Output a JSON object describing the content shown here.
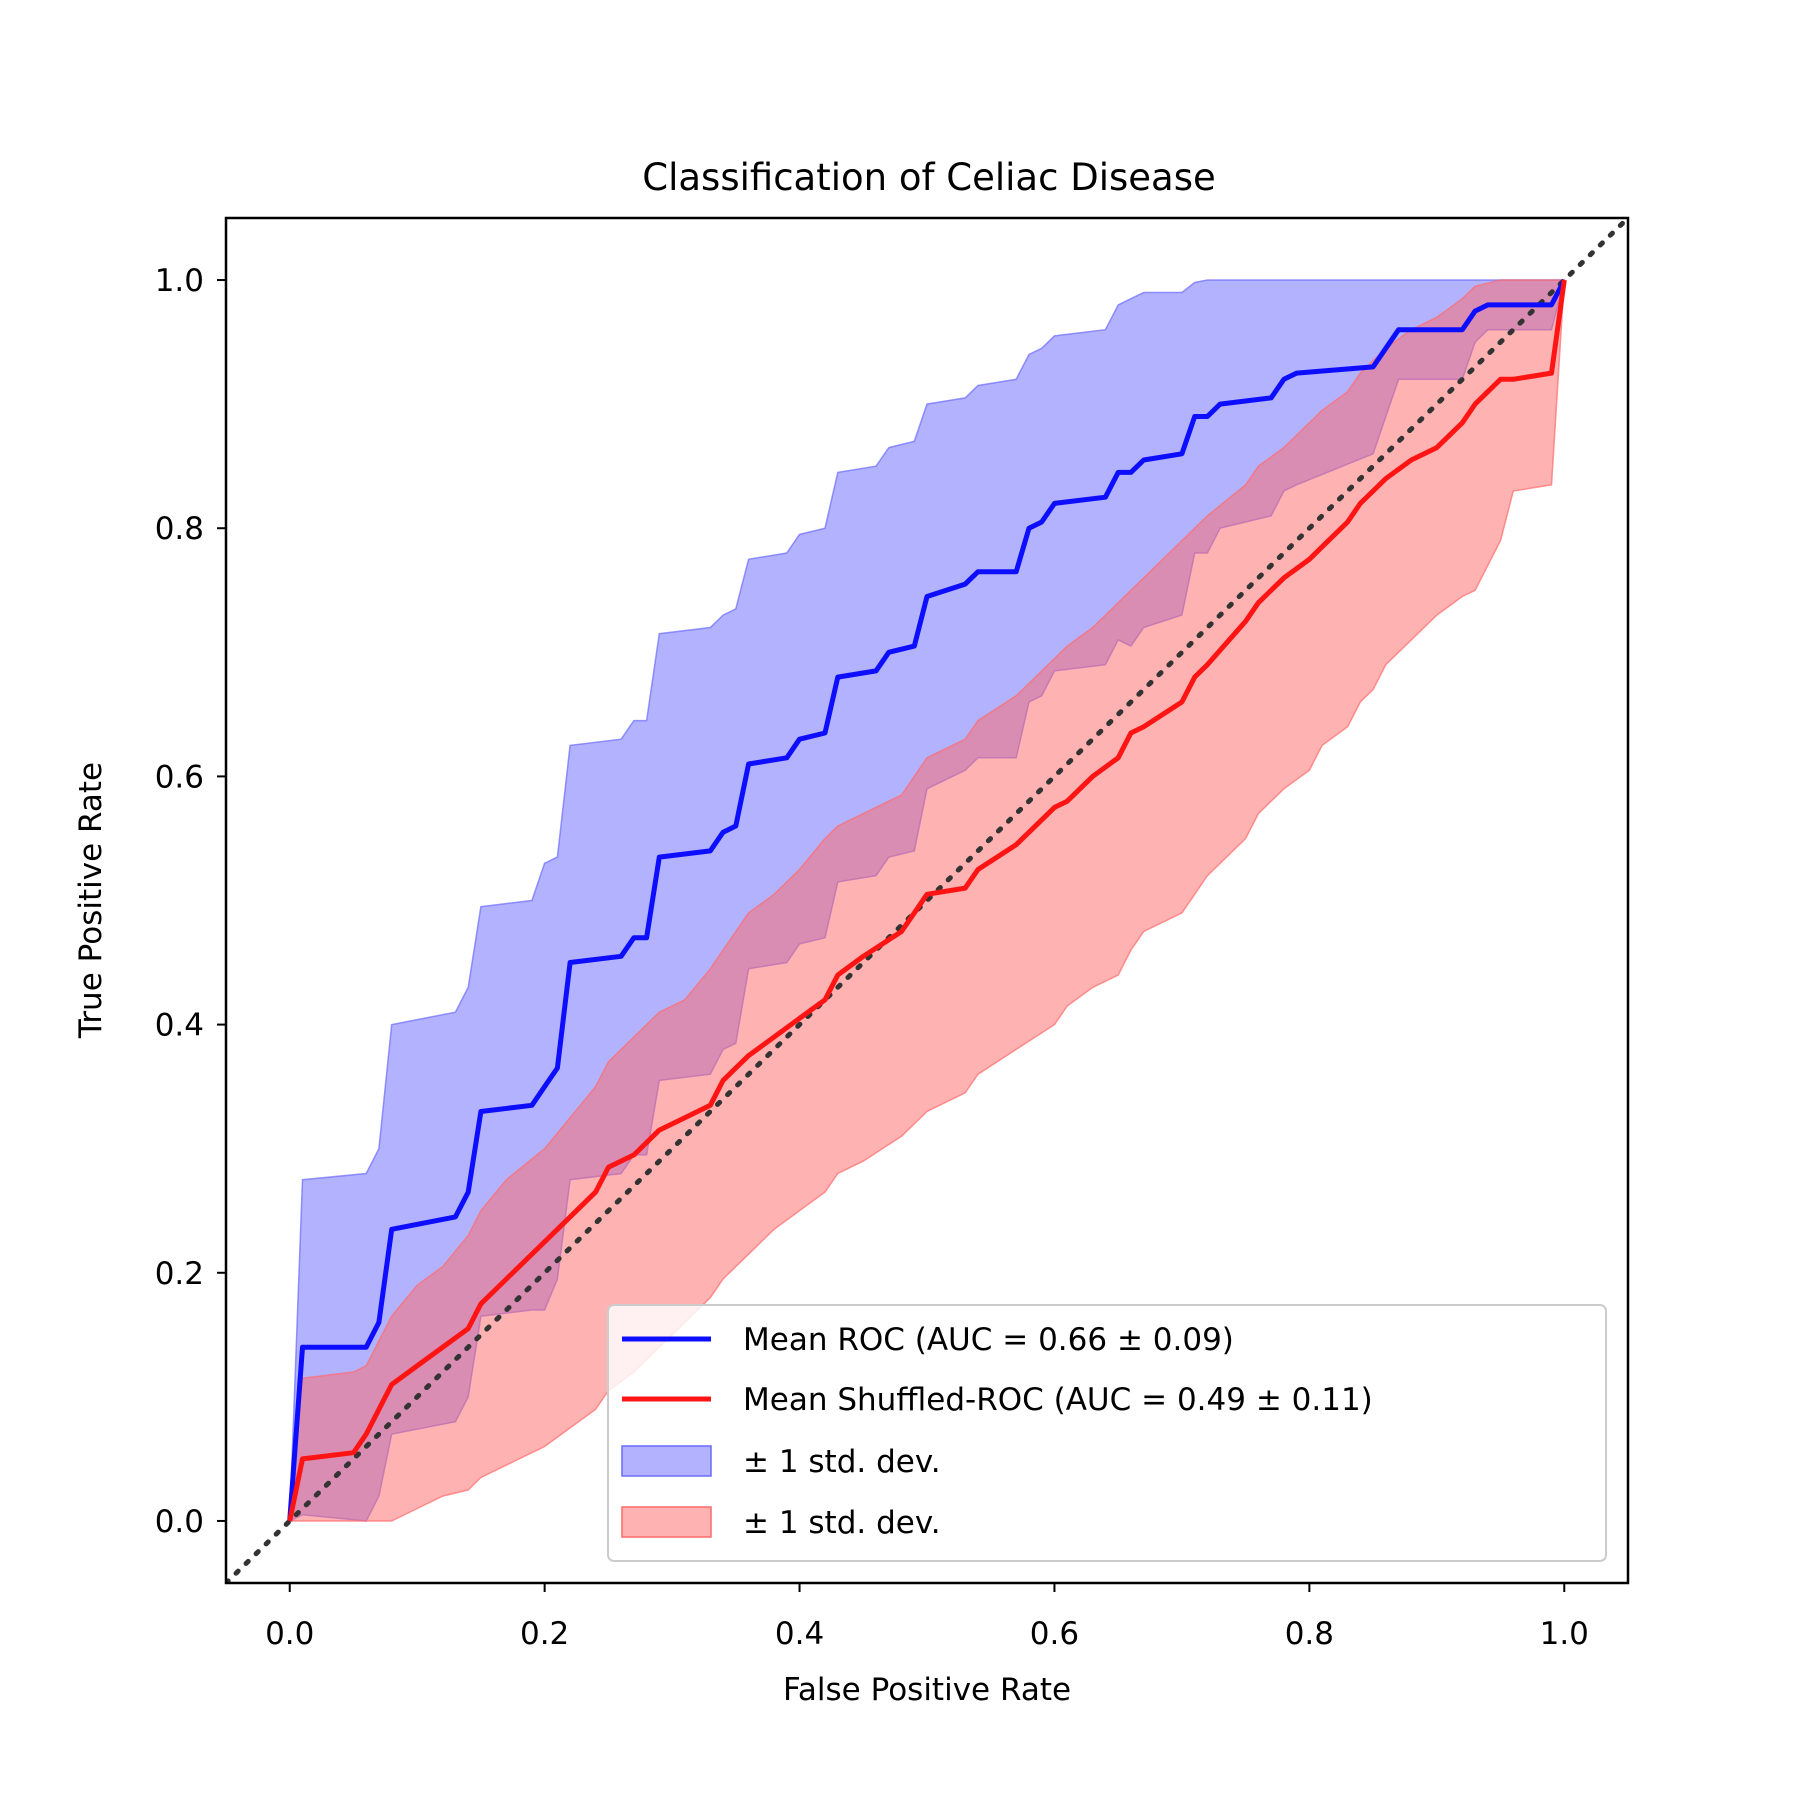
{
  "chart_data": {
    "type": "line",
    "title": "Classification of Celiac Disease",
    "xlabel": "False Positive Rate",
    "ylabel": "True Positive Rate",
    "xlim": [
      -0.05,
      1.05
    ],
    "ylim": [
      -0.05,
      1.05
    ],
    "xticks": [
      0.0,
      0.2,
      0.4,
      0.6,
      0.8,
      1.0
    ],
    "yticks": [
      0.0,
      0.2,
      0.4,
      0.6,
      0.8,
      1.0
    ],
    "xtick_labels": [
      "0.0",
      "0.2",
      "0.4",
      "0.6",
      "0.8",
      "1.0"
    ],
    "ytick_labels": [
      "0.0",
      "0.2",
      "0.4",
      "0.6",
      "0.8",
      "1.0"
    ],
    "legend_position": "lower-right",
    "diagonal": {
      "name": "chance",
      "color": "#333333",
      "style": "dotted",
      "from": [
        -0.05,
        -0.05
      ],
      "to": [
        1.05,
        1.05
      ]
    },
    "series": [
      {
        "name": "Mean ROC (AUC = 0.66 ± 0.09)",
        "color": "#0d0dff",
        "x": [
          0.0,
          0.01,
          0.06,
          0.07,
          0.08,
          0.13,
          0.14,
          0.15,
          0.19,
          0.2,
          0.21,
          0.22,
          0.26,
          0.27,
          0.28,
          0.29,
          0.33,
          0.34,
          0.35,
          0.36,
          0.39,
          0.4,
          0.42,
          0.43,
          0.46,
          0.47,
          0.49,
          0.5,
          0.53,
          0.54,
          0.57,
          0.58,
          0.59,
          0.6,
          0.64,
          0.65,
          0.66,
          0.67,
          0.7,
          0.71,
          0.72,
          0.73,
          0.77,
          0.78,
          0.79,
          0.85,
          0.86,
          0.87,
          0.92,
          0.93,
          0.94,
          0.99,
          1.0
        ],
        "y": [
          0.0,
          0.14,
          0.14,
          0.16,
          0.235,
          0.245,
          0.265,
          0.33,
          0.335,
          0.35,
          0.365,
          0.45,
          0.455,
          0.47,
          0.47,
          0.535,
          0.54,
          0.555,
          0.56,
          0.61,
          0.615,
          0.63,
          0.635,
          0.68,
          0.685,
          0.7,
          0.705,
          0.745,
          0.755,
          0.765,
          0.765,
          0.8,
          0.805,
          0.82,
          0.825,
          0.845,
          0.845,
          0.855,
          0.86,
          0.89,
          0.89,
          0.9,
          0.905,
          0.92,
          0.925,
          0.93,
          0.945,
          0.96,
          0.96,
          0.975,
          0.98,
          0.98,
          1.0
        ]
      },
      {
        "name": "Mean Shuffled-ROC (AUC = 0.49 ± 0.11)",
        "color": "#ff1414",
        "x": [
          0.0,
          0.01,
          0.05,
          0.06,
          0.08,
          0.1,
          0.12,
          0.14,
          0.15,
          0.17,
          0.2,
          0.22,
          0.24,
          0.25,
          0.27,
          0.29,
          0.31,
          0.33,
          0.34,
          0.35,
          0.36,
          0.38,
          0.4,
          0.42,
          0.43,
          0.45,
          0.48,
          0.49,
          0.5,
          0.53,
          0.54,
          0.57,
          0.6,
          0.61,
          0.63,
          0.65,
          0.66,
          0.67,
          0.7,
          0.71,
          0.72,
          0.75,
          0.76,
          0.78,
          0.8,
          0.81,
          0.83,
          0.84,
          0.85,
          0.86,
          0.88,
          0.9,
          0.92,
          0.93,
          0.95,
          0.96,
          0.99,
          1.0
        ],
        "y": [
          0.0,
          0.05,
          0.055,
          0.07,
          0.11,
          0.125,
          0.14,
          0.155,
          0.175,
          0.195,
          0.225,
          0.245,
          0.265,
          0.285,
          0.295,
          0.315,
          0.325,
          0.335,
          0.355,
          0.365,
          0.375,
          0.39,
          0.405,
          0.42,
          0.44,
          0.455,
          0.475,
          0.49,
          0.505,
          0.51,
          0.525,
          0.545,
          0.575,
          0.58,
          0.6,
          0.615,
          0.635,
          0.64,
          0.66,
          0.68,
          0.69,
          0.725,
          0.74,
          0.76,
          0.775,
          0.785,
          0.805,
          0.82,
          0.83,
          0.84,
          0.855,
          0.865,
          0.885,
          0.9,
          0.92,
          0.92,
          0.925,
          1.0
        ]
      }
    ],
    "bands": [
      {
        "name": "± 1 std. dev.",
        "color": "#6b6bff",
        "opacity": 0.52,
        "x": [
          0.0,
          0.01,
          0.06,
          0.07,
          0.08,
          0.13,
          0.14,
          0.15,
          0.19,
          0.2,
          0.21,
          0.22,
          0.26,
          0.27,
          0.28,
          0.29,
          0.33,
          0.34,
          0.35,
          0.36,
          0.39,
          0.4,
          0.42,
          0.43,
          0.46,
          0.47,
          0.49,
          0.5,
          0.53,
          0.54,
          0.57,
          0.58,
          0.59,
          0.6,
          0.64,
          0.65,
          0.66,
          0.67,
          0.7,
          0.71,
          0.72,
          0.73,
          0.77,
          0.78,
          0.79,
          0.85,
          0.86,
          0.87,
          0.92,
          0.93,
          0.94,
          0.99,
          1.0
        ],
        "upper": [
          0.0,
          0.275,
          0.28,
          0.3,
          0.4,
          0.41,
          0.43,
          0.495,
          0.5,
          0.53,
          0.535,
          0.625,
          0.63,
          0.645,
          0.645,
          0.715,
          0.72,
          0.73,
          0.735,
          0.775,
          0.78,
          0.795,
          0.8,
          0.845,
          0.85,
          0.865,
          0.87,
          0.9,
          0.905,
          0.915,
          0.92,
          0.94,
          0.945,
          0.955,
          0.96,
          0.98,
          0.985,
          0.99,
          0.99,
          0.998,
          1.0,
          1.0,
          1.0,
          1.0,
          1.0,
          1.0,
          1.0,
          1.0,
          1.0,
          1.0,
          1.0,
          1.0,
          1.0
        ],
        "lower": [
          0.0,
          0.005,
          0.0,
          0.02,
          0.07,
          0.08,
          0.1,
          0.165,
          0.17,
          0.17,
          0.195,
          0.275,
          0.28,
          0.295,
          0.295,
          0.355,
          0.36,
          0.38,
          0.385,
          0.445,
          0.45,
          0.465,
          0.47,
          0.515,
          0.52,
          0.535,
          0.54,
          0.59,
          0.605,
          0.615,
          0.615,
          0.66,
          0.665,
          0.685,
          0.69,
          0.71,
          0.705,
          0.72,
          0.73,
          0.78,
          0.78,
          0.8,
          0.81,
          0.83,
          0.835,
          0.86,
          0.89,
          0.92,
          0.92,
          0.95,
          0.96,
          0.96,
          1.0
        ]
      },
      {
        "name": "± 1 std. dev.",
        "color": "#ff6b6b",
        "opacity": 0.52,
        "x": [
          0.0,
          0.01,
          0.05,
          0.06,
          0.08,
          0.1,
          0.12,
          0.14,
          0.15,
          0.17,
          0.2,
          0.22,
          0.24,
          0.25,
          0.27,
          0.29,
          0.31,
          0.33,
          0.34,
          0.35,
          0.36,
          0.38,
          0.4,
          0.42,
          0.43,
          0.45,
          0.48,
          0.49,
          0.5,
          0.53,
          0.54,
          0.57,
          0.6,
          0.61,
          0.63,
          0.65,
          0.66,
          0.67,
          0.7,
          0.71,
          0.72,
          0.75,
          0.76,
          0.78,
          0.8,
          0.81,
          0.83,
          0.84,
          0.85,
          0.86,
          0.88,
          0.9,
          0.92,
          0.93,
          0.95,
          0.96,
          0.99,
          1.0
        ],
        "upper": [
          0.0,
          0.115,
          0.12,
          0.125,
          0.165,
          0.19,
          0.205,
          0.23,
          0.25,
          0.275,
          0.3,
          0.325,
          0.35,
          0.37,
          0.39,
          0.41,
          0.42,
          0.445,
          0.46,
          0.475,
          0.49,
          0.505,
          0.525,
          0.55,
          0.56,
          0.57,
          0.585,
          0.6,
          0.615,
          0.63,
          0.645,
          0.665,
          0.695,
          0.705,
          0.72,
          0.74,
          0.75,
          0.76,
          0.79,
          0.8,
          0.81,
          0.835,
          0.85,
          0.865,
          0.885,
          0.895,
          0.91,
          0.925,
          0.935,
          0.945,
          0.96,
          0.97,
          0.985,
          0.995,
          1.0,
          1.0,
          1.0,
          1.0
        ],
        "lower": [
          0.0,
          0.0,
          0.0,
          0.0,
          0.0,
          0.01,
          0.02,
          0.025,
          0.035,
          0.045,
          0.06,
          0.075,
          0.09,
          0.105,
          0.12,
          0.14,
          0.16,
          0.18,
          0.195,
          0.205,
          0.215,
          0.235,
          0.25,
          0.265,
          0.28,
          0.29,
          0.31,
          0.32,
          0.33,
          0.345,
          0.36,
          0.38,
          0.4,
          0.415,
          0.43,
          0.44,
          0.46,
          0.475,
          0.49,
          0.505,
          0.52,
          0.55,
          0.57,
          0.59,
          0.605,
          0.625,
          0.64,
          0.66,
          0.67,
          0.69,
          0.71,
          0.73,
          0.745,
          0.75,
          0.79,
          0.83,
          0.835,
          1.0
        ]
      }
    ]
  }
}
